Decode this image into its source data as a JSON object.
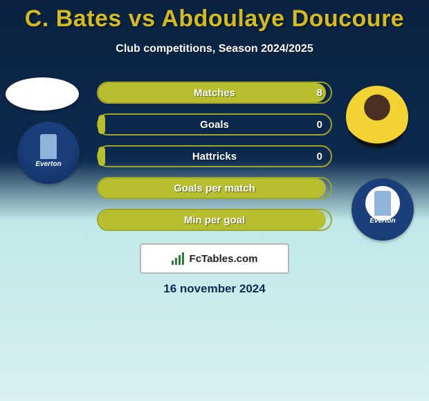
{
  "title_color": "#d4ba24",
  "title": "C. Bates vs Abdoulaye Doucoure",
  "subtitle": "Club competitions, Season 2024/2025",
  "date": "16 november 2024",
  "footer_brand": "FcTables.com",
  "bars": {
    "border_color": "#9fa52a",
    "fill_color": "#b8bf2f",
    "track_bg": "rgba(0,0,0,0)",
    "rows": [
      {
        "label": "Matches",
        "value_right": "8",
        "fill_pct": 98
      },
      {
        "label": "Goals",
        "value_right": "0",
        "fill_pct": 4
      },
      {
        "label": "Hattricks",
        "value_right": "0",
        "fill_pct": 4
      },
      {
        "label": "Goals per match",
        "value_right": "",
        "fill_pct": 98
      },
      {
        "label": "Min per goal",
        "value_right": "",
        "fill_pct": 98
      }
    ]
  },
  "club_text": "Everton"
}
